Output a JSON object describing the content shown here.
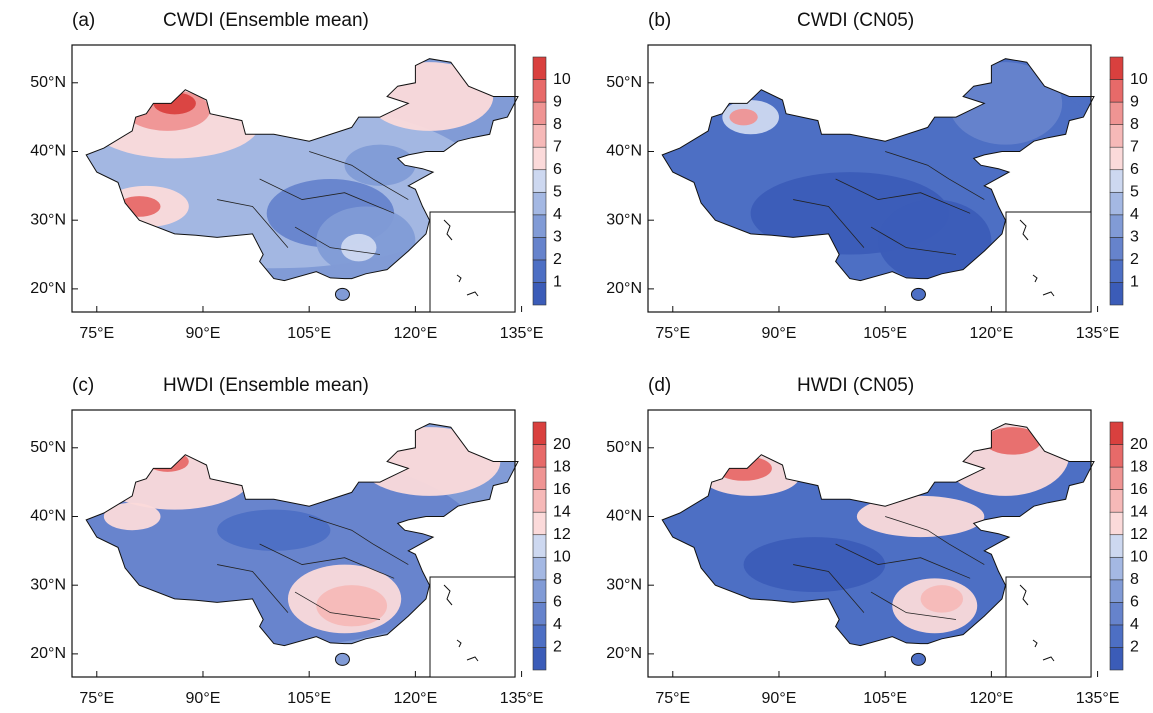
{
  "panels": [
    {
      "label": "(a)",
      "title": "CWDI (Ensemble mean)",
      "colorbar_labels": [
        1,
        2,
        3,
        4,
        5,
        6,
        7,
        8,
        9,
        10
      ]
    },
    {
      "label": "(b)",
      "title": "CWDI (CN05)",
      "colorbar_labels": [
        1,
        2,
        3,
        4,
        5,
        6,
        7,
        8,
        9,
        10
      ]
    },
    {
      "label": "(c)",
      "title": "HWDI (Ensemble mean)",
      "colorbar_labels": [
        2,
        4,
        6,
        8,
        10,
        12,
        14,
        16,
        18,
        20
      ]
    },
    {
      "label": "(d)",
      "title": "HWDI (CN05)",
      "colorbar_labels": [
        2,
        4,
        6,
        8,
        10,
        12,
        14,
        16,
        18,
        20
      ]
    }
  ],
  "lon_labels": [
    "75°E",
    "90°E",
    "105°E",
    "120°E",
    "135°E"
  ],
  "lat_labels": [
    "50°N",
    "40°N",
    "30°N",
    "20°N"
  ],
  "colors": [
    "#3b5cb8",
    "#4d6fc4",
    "#6683cc",
    "#819bd6",
    "#a4b8e3",
    "#cdd8f0",
    "#fbdada",
    "#f6b9b8",
    "#ef9493",
    "#e76a69",
    "#d9403e"
  ]
}
